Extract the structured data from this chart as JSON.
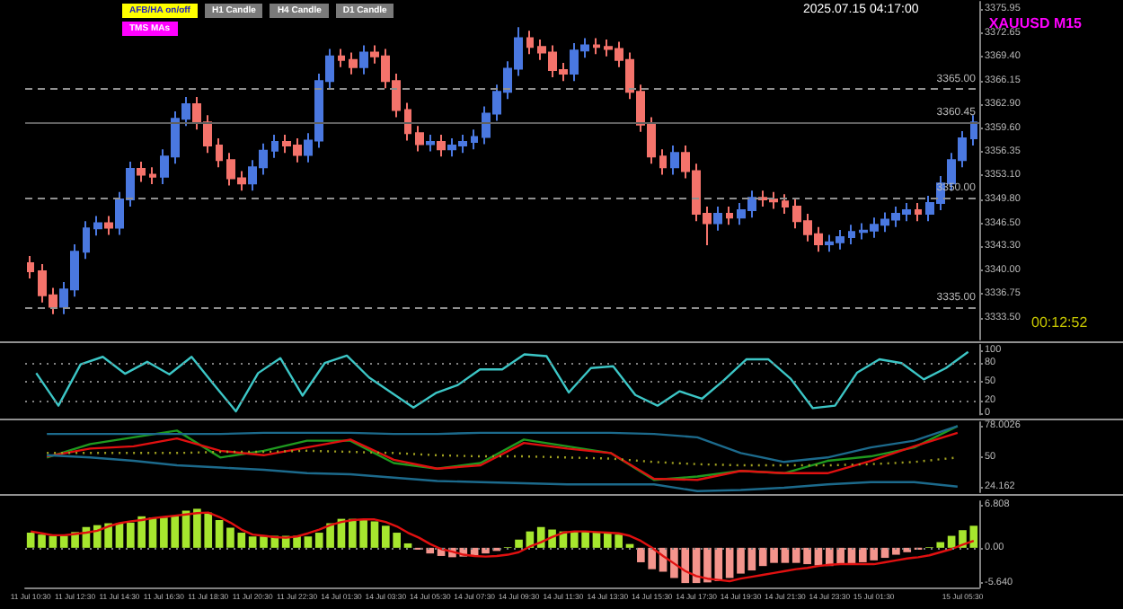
{
  "chart_data": [
    {
      "type": "candlestick",
      "title": "XAUUSD M15",
      "categories": [
        null,
        null,
        null,
        null,
        null,
        null,
        null,
        null,
        null,
        null,
        null,
        null,
        null,
        null,
        null,
        null,
        null,
        null,
        null,
        null,
        null,
        null,
        null,
        null,
        null,
        null,
        null,
        null,
        null,
        null,
        null,
        null,
        null,
        null,
        null,
        null,
        null,
        null,
        null,
        null,
        null,
        null,
        null,
        null,
        null,
        null,
        null,
        null,
        null,
        null,
        null,
        null,
        null,
        null,
        null,
        null,
        null,
        null,
        null,
        null,
        null,
        null,
        null,
        null,
        null,
        null,
        null,
        null,
        null,
        null,
        null,
        null,
        null,
        null,
        null,
        null,
        null,
        null,
        null,
        null,
        null,
        null,
        null,
        null,
        null,
        null
      ],
      "ohlc": [
        [
          3341.0,
          3342.0,
          3338.9,
          3339.9
        ],
        [
          3339.9,
          3340.9,
          3335.6,
          3336.6
        ],
        [
          3336.6,
          3337.6,
          3334.0,
          3335.0
        ],
        [
          3335.0,
          3338.4,
          3334.0,
          3337.4
        ],
        [
          3337.4,
          3343.6,
          3336.4,
          3342.6
        ],
        [
          3342.6,
          3346.8,
          3341.6,
          3345.8
        ],
        [
          3345.8,
          3347.5,
          3344.8,
          3346.5
        ],
        [
          3346.5,
          3347.5,
          3344.9,
          3345.9
        ],
        [
          3345.9,
          3350.8,
          3344.9,
          3349.8
        ],
        [
          3349.8,
          3355.0,
          3348.8,
          3354.0
        ],
        [
          3354.0,
          3355.0,
          3352.2,
          3353.2
        ],
        [
          3353.2,
          3354.2,
          3351.9,
          3352.9
        ],
        [
          3352.9,
          3356.7,
          3351.9,
          3355.7
        ],
        [
          3355.7,
          3361.9,
          3354.7,
          3360.9
        ],
        [
          3360.9,
          3363.9,
          3359.9,
          3362.9
        ],
        [
          3362.9,
          3363.9,
          3359.4,
          3360.4
        ],
        [
          3360.4,
          3361.4,
          3356.2,
          3357.2
        ],
        [
          3357.2,
          3358.2,
          3354.2,
          3355.2
        ],
        [
          3355.2,
          3356.2,
          3351.7,
          3352.7
        ],
        [
          3352.7,
          3353.7,
          3351.0,
          3352.0
        ],
        [
          3352.0,
          3355.2,
          3351.0,
          3354.2
        ],
        [
          3354.2,
          3357.5,
          3353.2,
          3356.5
        ],
        [
          3356.5,
          3358.7,
          3355.5,
          3357.7
        ],
        [
          3357.7,
          3358.7,
          3356.2,
          3357.2
        ],
        [
          3357.2,
          3358.2,
          3354.9,
          3355.9
        ],
        [
          3355.9,
          3358.9,
          3354.9,
          3357.9
        ],
        [
          3357.9,
          3367.1,
          3356.9,
          3366.1
        ],
        [
          3366.1,
          3370.5,
          3365.1,
          3369.5
        ],
        [
          3369.5,
          3370.5,
          3368.0,
          3369.0
        ],
        [
          3369.0,
          3370.0,
          3367.0,
          3368.0
        ],
        [
          3368.0,
          3371.0,
          3367.0,
          3370.0
        ],
        [
          3370.0,
          3371.0,
          3368.5,
          3369.5
        ],
        [
          3369.5,
          3370.5,
          3365.1,
          3366.1
        ],
        [
          3366.1,
          3367.1,
          3361.1,
          3362.1
        ],
        [
          3362.1,
          3363.1,
          3357.9,
          3358.9
        ],
        [
          3358.9,
          3359.9,
          3356.4,
          3357.4
        ],
        [
          3357.4,
          3358.7,
          3356.4,
          3357.7
        ],
        [
          3357.7,
          3358.7,
          3355.7,
          3356.7
        ],
        [
          3356.7,
          3358.2,
          3355.7,
          3357.2
        ],
        [
          3357.2,
          3358.7,
          3356.2,
          3357.7
        ],
        [
          3357.7,
          3359.4,
          3356.7,
          3358.4
        ],
        [
          3358.4,
          3362.6,
          3357.4,
          3361.6
        ],
        [
          3361.6,
          3365.6,
          3360.6,
          3364.6
        ],
        [
          3364.6,
          3368.8,
          3363.6,
          3367.8
        ],
        [
          3367.8,
          3373.5,
          3366.8,
          3372.0
        ],
        [
          3372.0,
          3373.0,
          3369.8,
          3370.8
        ],
        [
          3370.8,
          3371.8,
          3369.0,
          3370.0
        ],
        [
          3370.0,
          3371.0,
          3366.6,
          3367.6
        ],
        [
          3367.6,
          3368.6,
          3366.1,
          3367.1
        ],
        [
          3367.1,
          3371.3,
          3366.1,
          3370.3
        ],
        [
          3370.3,
          3372.0,
          3369.3,
          3371.0
        ],
        [
          3371.0,
          3372.0,
          3369.8,
          3370.8
        ],
        [
          3370.8,
          3371.8,
          3369.5,
          3370.5
        ],
        [
          3370.5,
          3371.5,
          3368.0,
          3369.0
        ],
        [
          3369.0,
          3370.0,
          3363.6,
          3364.6
        ],
        [
          3364.6,
          3365.6,
          3359.1,
          3360.1
        ],
        [
          3360.1,
          3361.1,
          3354.7,
          3355.7
        ],
        [
          3355.7,
          3356.7,
          3353.2,
          3354.2
        ],
        [
          3354.2,
          3357.2,
          3353.2,
          3356.2
        ],
        [
          3356.2,
          3357.2,
          3352.7,
          3353.7
        ],
        [
          3353.7,
          3354.7,
          3346.8,
          3347.8
        ],
        [
          3347.8,
          3348.8,
          3343.5,
          3346.5
        ],
        [
          3346.5,
          3348.8,
          3345.5,
          3347.8
        ],
        [
          3347.8,
          3348.8,
          3346.3,
          3347.3
        ],
        [
          3347.3,
          3349.3,
          3346.3,
          3348.3
        ],
        [
          3348.3,
          3351.0,
          3347.3,
          3350.0
        ],
        [
          3350.0,
          3351.0,
          3348.8,
          3349.8
        ],
        [
          3349.8,
          3350.8,
          3348.5,
          3349.5
        ],
        [
          3349.5,
          3350.5,
          3347.8,
          3348.8
        ],
        [
          3348.8,
          3349.8,
          3345.8,
          3346.8
        ],
        [
          3346.8,
          3347.8,
          3344.0,
          3345.0
        ],
        [
          3345.0,
          3346.0,
          3342.6,
          3343.6
        ],
        [
          3343.6,
          3344.9,
          3342.6,
          3343.9
        ],
        [
          3343.9,
          3345.6,
          3342.9,
          3344.6
        ],
        [
          3344.6,
          3346.3,
          3343.6,
          3345.3
        ],
        [
          3345.3,
          3346.5,
          3344.3,
          3345.5
        ],
        [
          3345.5,
          3347.3,
          3344.5,
          3346.3
        ],
        [
          3346.3,
          3348.0,
          3345.3,
          3347.0
        ],
        [
          3347.0,
          3348.8,
          3346.0,
          3347.8
        ],
        [
          3347.8,
          3349.3,
          3346.8,
          3348.3
        ],
        [
          3348.3,
          3349.3,
          3346.8,
          3347.8
        ],
        [
          3347.8,
          3350.3,
          3346.8,
          3349.3
        ],
        [
          3349.3,
          3353.0,
          3348.3,
          3352.0
        ],
        [
          3352.0,
          3356.2,
          3351.0,
          3355.2
        ],
        [
          3355.2,
          3359.2,
          3354.2,
          3358.2
        ],
        [
          3358.2,
          3361.4,
          3357.2,
          3360.4
        ]
      ],
      "colors": [
        "#f4736b",
        "#f4736b",
        "#f4736b",
        "#4a78e0",
        "#4a78e0",
        "#4a78e0",
        "#4a78e0",
        "#f4736b",
        "#4a78e0",
        "#4a78e0",
        "#f4736b",
        "#f4736b",
        "#4a78e0",
        "#4a78e0",
        "#4a78e0",
        "#f4736b",
        "#f4736b",
        "#f4736b",
        "#f4736b",
        "#f4736b",
        "#4a78e0",
        "#4a78e0",
        "#4a78e0",
        "#f4736b",
        "#f4736b",
        "#4a78e0",
        "#4a78e0",
        "#4a78e0",
        "#f4736b",
        "#f4736b",
        "#4a78e0",
        "#f4736b",
        "#f4736b",
        "#f4736b",
        "#f4736b",
        "#f4736b",
        "#4a78e0",
        "#f4736b",
        "#4a78e0",
        "#4a78e0",
        "#4a78e0",
        "#4a78e0",
        "#4a78e0",
        "#4a78e0",
        "#4a78e0",
        "#f4736b",
        "#f4736b",
        "#f4736b",
        "#f4736b",
        "#4a78e0",
        "#4a78e0",
        "#f4736b",
        "#f4736b",
        "#f4736b",
        "#f4736b",
        "#f4736b",
        "#f4736b",
        "#f4736b",
        "#4a78e0",
        "#f4736b",
        "#f4736b",
        "#f4736b",
        "#4a78e0",
        "#f4736b",
        "#4a78e0",
        "#4a78e0",
        "#f4736b",
        "#f4736b",
        "#f4736b",
        "#f4736b",
        "#f4736b",
        "#f4736b",
        "#4a78e0",
        "#4a78e0",
        "#4a78e0",
        "#4a78e0",
        "#4a78e0",
        "#4a78e0",
        "#4a78e0",
        "#4a78e0",
        "#f4736b",
        "#4a78e0",
        "#4a78e0",
        "#4a78e0",
        "#4a78e0",
        "#4a78e0"
      ],
      "ylim": [
        3330.5,
        3377
      ],
      "yticks": [
        {
          "value": 3333.5,
          "label": "3333.50"
        },
        {
          "value": 3336.75,
          "label": "3336.75"
        },
        {
          "value": 3340,
          "label": "3340.00"
        },
        {
          "value": 3343.3,
          "label": "3343.30"
        },
        {
          "value": 3346.5,
          "label": "3346.50"
        },
        {
          "value": 3349.8,
          "label": "3349.80"
        },
        {
          "value": 3353.1,
          "label": "3353.10"
        },
        {
          "value": 3356.35,
          "label": "3356.35"
        },
        {
          "value": 3359.6,
          "label": "3359.60"
        },
        {
          "value": 3362.9,
          "label": "3362.90"
        },
        {
          "value": 3366.15,
          "label": "3366.15"
        },
        {
          "value": 3369.4,
          "label": "3369.40"
        },
        {
          "value": 3372.65,
          "label": "3372.65"
        },
        {
          "value": 3375.95,
          "label": "3375.95"
        }
      ],
      "tick_labels": "y",
      "ref_lines": [
        {
          "axis": "y",
          "value": 3360.45,
          "label": "3360.45",
          "color": "#606060",
          "line_style": "solid"
        },
        {
          "axis": "y",
          "value": 3365,
          "label": "3365.00",
          "color": "#909090",
          "line_style": "dashed"
        },
        {
          "axis": "y",
          "value": 3350,
          "label": "3350.00",
          "color": "#909090",
          "line_style": "dashed"
        },
        {
          "axis": "y",
          "value": 3335,
          "label": "3335.00",
          "color": "#909090",
          "line_style": "dashed"
        }
      ],
      "annotations": [
        "AFB/HA on/off",
        "H1 Candle",
        "H4 Candle",
        "D1 Candle",
        "TMS MAs",
        "2025.07.15 04:17:00",
        "00:12:52"
      ]
    },
    {
      "type": "line",
      "categories": [
        null,
        null,
        null,
        null,
        null,
        null,
        null,
        null,
        null,
        null,
        null,
        null,
        null,
        null,
        null,
        null,
        null,
        null,
        null,
        null,
        null,
        null,
        null,
        null,
        null,
        null,
        null,
        null,
        null,
        null,
        null,
        null,
        null,
        null,
        null,
        null,
        null,
        null,
        null,
        null,
        null,
        null,
        null
      ],
      "series": [
        {
          "color": "#3cc6c6",
          "values": [
            64,
            12,
            78,
            90,
            63,
            82,
            62,
            90,
            46,
            3,
            64,
            88,
            28,
            80,
            92,
            57,
            33,
            9,
            32,
            45,
            70,
            70,
            94,
            91,
            33,
            72,
            75,
            29,
            12,
            35,
            23,
            53,
            86,
            86,
            55,
            8,
            12,
            65,
            86,
            80,
            54,
            72,
            98
          ]
        }
      ],
      "ylim": [
        -2,
        109
      ],
      "yticks": [
        0,
        20,
        50,
        80,
        100
      ],
      "tick_labels": "y",
      "marker": "none",
      "ref_lines": [
        {
          "axis": "y",
          "value": 20,
          "color": "#808080",
          "line_style": "dotted"
        },
        {
          "axis": "y",
          "value": 50,
          "color": "#808080",
          "line_style": "dotted"
        },
        {
          "axis": "y",
          "value": 80,
          "color": "#808080",
          "line_style": "dotted"
        }
      ]
    },
    {
      "type": "line",
      "categories": [
        null,
        null,
        null,
        null,
        null,
        null,
        null,
        null,
        null,
        null,
        null,
        null,
        null,
        null,
        null,
        null,
        null,
        null,
        null,
        null,
        null,
        null
      ],
      "series": [
        {
          "color": "#1f9a1f",
          "values": [
            50,
            62,
            68,
            74,
            50,
            56,
            65,
            65,
            45,
            40,
            45,
            66,
            60,
            54,
            30,
            33,
            38,
            36,
            47,
            51,
            59,
            78
          ]
        },
        {
          "color": "#e01010",
          "values": [
            51,
            58,
            60,
            67,
            56,
            52,
            59,
            66,
            48,
            40,
            43,
            63,
            58,
            54,
            31,
            30,
            38,
            36,
            36,
            47,
            60,
            72
          ]
        },
        {
          "color": "#1c6a8c",
          "values": [
            71,
            71,
            71,
            71,
            71,
            72,
            72,
            72,
            71,
            71,
            72,
            72,
            72,
            72,
            71,
            68,
            54,
            46,
            50,
            59,
            65,
            78
          ]
        },
        {
          "color": "#1c6a8c",
          "values": [
            52,
            50,
            47,
            43,
            41,
            39,
            36,
            35,
            32,
            29,
            28,
            27,
            26,
            26,
            26,
            20,
            21,
            23,
            26,
            28,
            28,
            24
          ]
        },
        {
          "color": "#a0a020",
          "line_style": "dotted",
          "values": [
            54,
            54,
            54,
            54,
            55,
            55,
            56,
            55,
            54,
            52,
            51,
            51,
            50,
            49,
            46,
            44,
            43,
            43,
            43,
            44,
            46,
            50
          ]
        }
      ],
      "ylim": [
        19,
        81.5
      ],
      "yticks": [
        {
          "value": 24.162,
          "label": "24.162"
        },
        50,
        {
          "value": 78.0026,
          "label": "78.0026"
        }
      ],
      "tick_labels": "y",
      "marker": "none"
    },
    {
      "type": "bar",
      "categories": [
        "11 Jul 10:30",
        null,
        null,
        null,
        "11 Jul 12:30",
        null,
        null,
        null,
        "11 Jul 14:30",
        null,
        null,
        null,
        "11 Jul 16:30",
        null,
        null,
        null,
        "11 Jul 18:30",
        null,
        null,
        null,
        "11 Jul 20:30",
        null,
        null,
        null,
        "11 Jul 22:30",
        null,
        null,
        null,
        "14 Jul 01:30",
        null,
        null,
        null,
        "14 Jul 03:30",
        null,
        null,
        null,
        "14 Jul 05:30",
        null,
        null,
        null,
        "14 Jul 07:30",
        null,
        null,
        null,
        "14 Jul 09:30",
        null,
        null,
        null,
        "14 Jul 11:30",
        null,
        null,
        null,
        "14 Jul 13:30",
        null,
        null,
        null,
        "14 Jul 15:30",
        null,
        null,
        null,
        "14 Jul 17:30",
        null,
        null,
        null,
        "14 Jul 19:30",
        null,
        null,
        null,
        "14 Jul 21:30",
        null,
        null,
        null,
        "14 Jul 23:30",
        null,
        null,
        null,
        "15 Jul 01:30",
        null,
        null,
        null,
        null,
        null,
        null,
        null,
        "15 Jul 05:30",
        null
      ],
      "series": [
        {
          "type": "bar",
          "values": [
            2.4,
            2.1,
            1.9,
            1.9,
            2.5,
            3.3,
            3.6,
            3.9,
            3.9,
            4.0,
            5.0,
            4.8,
            4.8,
            5.1,
            5.9,
            6.2,
            5.6,
            4.4,
            3.2,
            2.4,
            1.8,
            1.8,
            1.9,
            1.9,
            1.9,
            1.8,
            2.4,
            3.9,
            4.6,
            4.6,
            4.5,
            4.2,
            3.5,
            2.4,
            0.7,
            -0.3,
            -0.9,
            -1.3,
            -1.5,
            -1.4,
            -1.3,
            -0.9,
            -0.5,
            0.1,
            1.3,
            2.6,
            3.3,
            2.9,
            2.6,
            2.6,
            2.6,
            2.5,
            2.4,
            2.1,
            0.6,
            -2.3,
            -3.4,
            -3.8,
            -4.8,
            -5.6,
            -5.6,
            -5.5,
            -5.3,
            -4.8,
            -4.1,
            -3.6,
            -2.9,
            -2.4,
            -2.4,
            -2.4,
            -2.6,
            -2.8,
            -2.9,
            -2.7,
            -2.5,
            -2.3,
            -2.0,
            -1.6,
            -1.1,
            -0.7,
            -0.3,
            0.1,
            0.9,
            1.9,
            2.8,
            3.5
          ],
          "colors": [
            "#a6e62e",
            "#a6e62e",
            "#a6e62e",
            "#a6e62e",
            "#a6e62e",
            "#a6e62e",
            "#a6e62e",
            "#a6e62e",
            "#a6e62e",
            "#a6e62e",
            "#a6e62e",
            "#a6e62e",
            "#a6e62e",
            "#a6e62e",
            "#a6e62e",
            "#a6e62e",
            "#a6e62e",
            "#a6e62e",
            "#a6e62e",
            "#a6e62e",
            "#a6e62e",
            "#a6e62e",
            "#a6e62e",
            "#a6e62e",
            "#a6e62e",
            "#a6e62e",
            "#a6e62e",
            "#a6e62e",
            "#a6e62e",
            "#a6e62e",
            "#a6e62e",
            "#a6e62e",
            "#a6e62e",
            "#a6e62e",
            "#a6e62e",
            "#f4948c",
            "#f4948c",
            "#f4948c",
            "#f4948c",
            "#f4948c",
            "#f4948c",
            "#f4948c",
            "#f4948c",
            "#a6e62e",
            "#a6e62e",
            "#a6e62e",
            "#a6e62e",
            "#a6e62e",
            "#a6e62e",
            "#a6e62e",
            "#a6e62e",
            "#a6e62e",
            "#a6e62e",
            "#a6e62e",
            "#a6e62e",
            "#f4948c",
            "#f4948c",
            "#f4948c",
            "#f4948c",
            "#f4948c",
            "#f4948c",
            "#f4948c",
            "#f4948c",
            "#f4948c",
            "#f4948c",
            "#f4948c",
            "#f4948c",
            "#f4948c",
            "#f4948c",
            "#f4948c",
            "#f4948c",
            "#f4948c",
            "#f4948c",
            "#f4948c",
            "#f4948c",
            "#f4948c",
            "#f4948c",
            "#f4948c",
            "#f4948c",
            "#f4948c",
            "#f4948c",
            "#a6e62e",
            "#a6e62e",
            "#a6e62e",
            "#a6e62e",
            "#a6e62e"
          ]
        },
        {
          "type": "line",
          "color": "#e01010",
          "values": [
            2.6,
            2.3,
            2.0,
            2.0,
            2.2,
            2.4,
            2.7,
            3.4,
            3.9,
            4.2,
            4.4,
            4.7,
            4.9,
            5.1,
            5.3,
            5.5,
            5.6,
            4.9,
            4.0,
            2.9,
            2.1,
            1.9,
            1.7,
            1.6,
            1.8,
            2.3,
            2.9,
            3.6,
            4.1,
            4.4,
            4.5,
            4.5,
            4.1,
            3.4,
            2.4,
            1.6,
            0.6,
            -0.2,
            -0.6,
            -1.1,
            -1.3,
            -1.4,
            -1.3,
            -1.1,
            -0.7,
            0.2,
            0.9,
            1.7,
            2.4,
            2.6,
            2.6,
            2.5,
            2.4,
            2.3,
            1.9,
            1.1,
            0.0,
            -1.3,
            -2.5,
            -3.7,
            -4.5,
            -4.9,
            -5.1,
            -5.3,
            -4.9,
            -4.6,
            -4.3,
            -4.0,
            -3.7,
            -3.4,
            -3.2,
            -2.9,
            -2.7,
            -2.6,
            -2.6,
            -2.6,
            -2.6,
            -2.3,
            -2.0,
            -1.7,
            -1.5,
            -1.2,
            -0.7,
            -0.2,
            0.5,
            1.1
          ]
        }
      ],
      "ylim": [
        -6.3,
        7.4
      ],
      "yticks": [
        {
          "value": -5.64,
          "label": "-5.640"
        },
        {
          "value": 0,
          "label": "0.00"
        },
        {
          "value": 6.808,
          "label": "6.808"
        }
      ],
      "marker": "none",
      "ref_lines": [
        {
          "axis": "y",
          "value": 0,
          "color": "#808080",
          "line_style": "dotted"
        }
      ]
    }
  ]
}
